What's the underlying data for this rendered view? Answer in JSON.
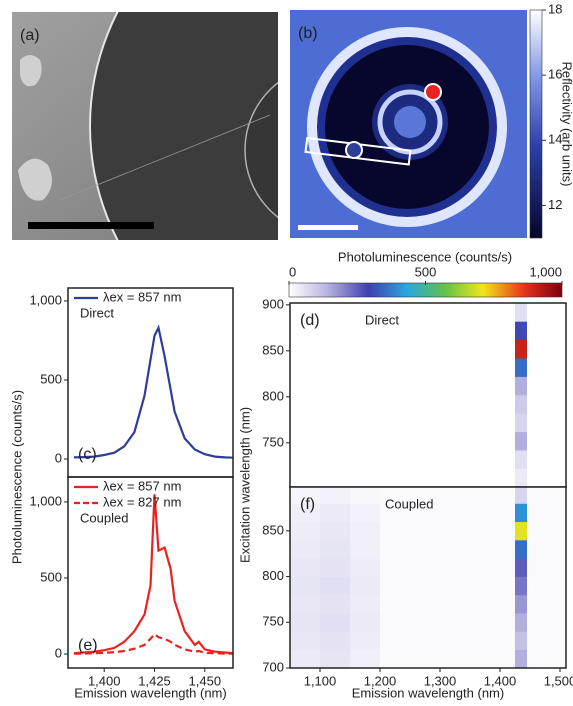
{
  "figure": {
    "pl_colorbar": {
      "label": "Photoluminescence (counts/s)",
      "clim": [
        0,
        1000
      ],
      "ticks": [
        0,
        500,
        {
          "value": 1000,
          "label": "1,000"
        }
      ]
    }
  },
  "chart_data": [
    {
      "type": "image",
      "label": "(a)"
    },
    {
      "type": "map",
      "label": "(b)",
      "colorbar_label": "Reflectivity (arb units)",
      "clim": [
        11,
        18
      ],
      "cticks": [
        12,
        14,
        16,
        18
      ]
    },
    {
      "type": "line",
      "label": "(c)",
      "annotation": "Direct",
      "ylabel": "Photoluminescence (counts/s)",
      "x": [
        1385,
        1390,
        1395,
        1400,
        1405,
        1410,
        1415,
        1420,
        1425,
        1427,
        1430,
        1435,
        1440,
        1445,
        1450,
        1455,
        1460,
        1464
      ],
      "series": [
        {
          "name": "λex = 857 nm",
          "color": "#2e3d98",
          "dash": false,
          "values": [
            10,
            12,
            15,
            25,
            40,
            80,
            170,
            400,
            780,
            830,
            650,
            300,
            130,
            60,
            30,
            15,
            10,
            8
          ]
        }
      ],
      "xlim": [
        1382,
        1464
      ],
      "ylim": [
        -114,
        1082
      ],
      "yticks": [
        0,
        500,
        {
          "value": 1000,
          "label": "1,000"
        }
      ]
    },
    {
      "type": "line",
      "label": "(e)",
      "annotation": "Coupled",
      "xlabel": "Emission wavelength (nm)",
      "x": [
        1385,
        1390,
        1395,
        1400,
        1405,
        1410,
        1415,
        1420,
        1423,
        1425,
        1427,
        1430,
        1433,
        1435,
        1440,
        1445,
        1447,
        1450,
        1455,
        1460,
        1464
      ],
      "series": [
        {
          "name": "λex = 857 nm",
          "color": "#e8231f",
          "dash": false,
          "values": [
            5,
            10,
            15,
            25,
            40,
            80,
            150,
            260,
            450,
            1050,
            680,
            700,
            560,
            350,
            150,
            60,
            80,
            30,
            15,
            10,
            5
          ]
        },
        {
          "name": "λex = 827 nm",
          "color": "#e8231f",
          "dash": true,
          "values": [
            2,
            3,
            5,
            8,
            12,
            20,
            35,
            60,
            100,
            130,
            110,
            100,
            80,
            60,
            30,
            15,
            20,
            8,
            5,
            3,
            2
          ]
        }
      ],
      "xlim": [
        1382,
        1464
      ],
      "ylim": [
        -92,
        1164
      ],
      "xticks": [
        {
          "value": 1400,
          "label": "1,400"
        },
        {
          "value": 1425,
          "label": "1,425"
        },
        {
          "value": 1450,
          "label": "1,450"
        }
      ],
      "yticks": [
        0,
        500,
        {
          "value": 1000,
          "label": "1,000"
        }
      ]
    },
    {
      "type": "heatmap",
      "label": "(d)",
      "annotation": "Direct",
      "ylabel": "Excitation wavelength (nm)",
      "xbins": [
        1050,
        1100,
        1150,
        1200,
        1250,
        1300,
        1350,
        1400,
        1425,
        1445,
        1510
      ],
      "ybins": [
        702,
        722,
        742,
        762,
        782,
        802,
        822,
        842,
        862,
        882,
        902
      ],
      "z": [
        [
          0,
          0,
          0,
          0,
          0,
          0,
          0,
          0,
          40,
          0
        ],
        [
          0,
          0,
          0,
          0,
          0,
          0,
          0,
          0,
          60,
          0
        ],
        [
          0,
          0,
          0,
          0,
          0,
          0,
          0,
          0,
          150,
          0
        ],
        [
          0,
          0,
          0,
          0,
          0,
          0,
          0,
          0,
          80,
          0
        ],
        [
          0,
          0,
          0,
          0,
          0,
          0,
          0,
          0,
          100,
          0
        ],
        [
          0,
          0,
          0,
          0,
          0,
          0,
          0,
          0,
          150,
          0
        ],
        [
          0,
          0,
          0,
          0,
          0,
          0,
          0,
          0,
          350,
          0
        ],
        [
          0,
          0,
          0,
          0,
          0,
          0,
          0,
          0,
          900,
          0
        ],
        [
          0,
          0,
          0,
          0,
          0,
          0,
          0,
          0,
          300,
          0
        ],
        [
          0,
          0,
          0,
          0,
          0,
          0,
          0,
          0,
          60,
          0
        ]
      ],
      "xlim": [
        1050,
        1510
      ],
      "ylim": [
        702,
        902
      ],
      "yticks": [
        750,
        800,
        850,
        900
      ]
    },
    {
      "type": "heatmap",
      "label": "(f)",
      "annotation": "Coupled",
      "xlabel": "Emission wavelength (nm)",
      "xbins": [
        1050,
        1100,
        1150,
        1200,
        1250,
        1300,
        1350,
        1400,
        1425,
        1445,
        1510
      ],
      "ybins": [
        700,
        720,
        740,
        760,
        780,
        800,
        820,
        840,
        860,
        880,
        898
      ],
      "z": [
        [
          40,
          50,
          30,
          10,
          10,
          10,
          10,
          10,
          150,
          10
        ],
        [
          45,
          55,
          35,
          10,
          10,
          10,
          10,
          10,
          120,
          10
        ],
        [
          50,
          60,
          40,
          10,
          10,
          10,
          10,
          10,
          150,
          10
        ],
        [
          45,
          55,
          35,
          10,
          10,
          10,
          10,
          10,
          180,
          10
        ],
        [
          50,
          60,
          40,
          10,
          10,
          10,
          10,
          10,
          220,
          10
        ],
        [
          45,
          55,
          35,
          10,
          10,
          10,
          10,
          10,
          250,
          10
        ],
        [
          40,
          50,
          30,
          10,
          10,
          10,
          10,
          10,
          350,
          10
        ],
        [
          35,
          45,
          30,
          10,
          10,
          10,
          10,
          10,
          700,
          10
        ],
        [
          30,
          40,
          25,
          10,
          10,
          10,
          10,
          10,
          400,
          10
        ],
        [
          20,
          25,
          15,
          10,
          10,
          10,
          10,
          10,
          80,
          10
        ]
      ],
      "xlim": [
        1050,
        1510
      ],
      "ylim": [
        700,
        898
      ],
      "xticks": [
        {
          "value": 1100,
          "label": "1,100"
        },
        {
          "value": 1200,
          "label": "1,200"
        },
        {
          "value": 1300,
          "label": "1,300"
        },
        {
          "value": 1400,
          "label": "1,400"
        },
        {
          "value": 1500,
          "label": "1,500"
        }
      ],
      "yticks": [
        700,
        750,
        800,
        850
      ]
    }
  ]
}
